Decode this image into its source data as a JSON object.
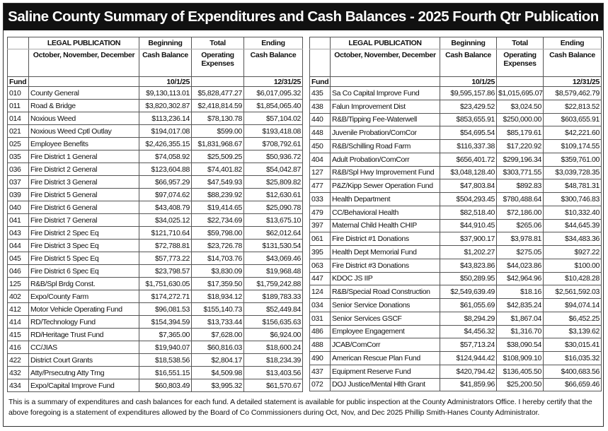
{
  "title": "Saline County Summary of Expenditures and Cash Balances - 2025 Fourth Qtr Publication",
  "tables": [
    {
      "header": [
        [
          "",
          "LEGAL PUBLICATION",
          "Beginning",
          "Total",
          "Ending"
        ],
        [
          "",
          "October, November, December",
          "Cash Balance",
          "Operating Expenses",
          "Cash Balance"
        ],
        [
          "Fund",
          "",
          "10/1/25",
          "",
          "12/31/25"
        ]
      ],
      "rows": [
        [
          "010",
          "County General",
          "$9,130,113.01",
          "$5,828,477.27",
          "$6,017,095.32"
        ],
        [
          "011",
          "Road & Bridge",
          "$3,820,302.87",
          "$2,418,814.59",
          "$1,854,065.40"
        ],
        [
          "014",
          "Noxious Weed",
          "$113,236.14",
          "$78,130.78",
          "$57,104.02"
        ],
        [
          "021",
          "Noxious Weed Cptl Outlay",
          "$194,017.08",
          "$599.00",
          "$193,418.08"
        ],
        [
          "025",
          "Employee Benefits",
          "$2,426,355.15",
          "$1,831,968.67",
          "$708,792.61"
        ],
        [
          "035",
          "Fire District 1 General",
          "$74,058.92",
          "$25,509.25",
          "$50,936.72"
        ],
        [
          "036",
          "Fire District 2 General",
          "$123,604.88",
          "$74,401.82",
          "$54,042.87"
        ],
        [
          "037",
          "Fire District 3 General",
          "$66,957.29",
          "$47,549.93",
          "$25,809.82"
        ],
        [
          "039",
          "Fire District 5 General",
          "$97,074.62",
          "$88,239.92",
          "$12,630.61"
        ],
        [
          "040",
          "Fire District 6 General",
          "$43,408.79",
          "$19,414.65",
          "$25,090.78"
        ],
        [
          "041",
          "Fire District 7 General",
          "$34,025.12",
          "$22,734.69",
          "$13,675.10"
        ],
        [
          "043",
          "Fire District 2 Spec Eq",
          "$121,710.64",
          "$59,798.00",
          "$62,012.64"
        ],
        [
          "044",
          "Fire District 3 Spec Eq",
          "$72,788.81",
          "$23,726.78",
          "$131,530.54"
        ],
        [
          "045",
          "Fire District 5 Spec Eq",
          "$57,773.22",
          "$14,703.76",
          "$43,069.46"
        ],
        [
          "046",
          "Fire District 6 Spec Eq",
          "$23,798.57",
          "$3,830.09",
          "$19,968.48"
        ],
        [
          "125",
          "R&B/Spl Brdg Const.",
          "$1,751,630.05",
          "$17,359.50",
          "$1,759,242.88"
        ],
        [
          "402",
          "Expo/County Farm",
          "$174,272.71",
          "$18,934.12",
          "$189,783.33"
        ],
        [
          "412",
          "Motor Vehicle Operating Fund",
          "$96,081.53",
          "$155,140.73",
          "$52,449.84"
        ],
        [
          "414",
          "RD/Technology Fund",
          "$154,394.59",
          "$13,733.44",
          "$156,635.63"
        ],
        [
          "415",
          "RD/Heritage Trust Fund",
          "$7,365.00",
          "$7,628.00",
          "$6,924.00"
        ],
        [
          "416",
          "CC/JIAS",
          "$19,940.07",
          "$60,816.03",
          "$18,600.24"
        ],
        [
          "422",
          "District Court Grants",
          "$18,538.56",
          "$2,804.17",
          "$18,234.39"
        ],
        [
          "432",
          "Atty/Prsecutng Atty Trng",
          "$16,551.15",
          "$4,509.98",
          "$13,403.56"
        ],
        [
          "434",
          "Expo/Capital Improve Fund",
          "$60,803.49",
          "$3,995.32",
          "$61,570.67"
        ]
      ]
    },
    {
      "header": [
        [
          "",
          "LEGAL PUBLICATION",
          "Beginning",
          "Total",
          "Ending"
        ],
        [
          "",
          "October, November, December",
          "Cash Balance",
          "Operating Expenses",
          "Cash Balance"
        ],
        [
          "Fund",
          "",
          "10/1/25",
          "",
          "12/31/25"
        ]
      ],
      "rows": [
        [
          "435",
          "Sa Co Capital Improve Fund",
          "$9,595,157.86",
          "$1,015,695.07",
          "$8,579,462.79"
        ],
        [
          "438",
          "Falun Improvement Dist",
          "$23,429.52",
          "$3,024.50",
          "$22,813.52"
        ],
        [
          "440",
          "R&B/Tipping Fee-Waterwell",
          "$853,655.91",
          "$250,000.00",
          "$603,655.91"
        ],
        [
          "448",
          "Juvenile Probation/ComCor",
          "$54,695.54",
          "$85,179.61",
          "$42,221.60"
        ],
        [
          "450",
          "R&B/Schilling Road Farm",
          "$116,337.38",
          "$17,220.92",
          "$109,174.55"
        ],
        [
          "404",
          "Adult Probation/ComCorr",
          "$656,401.72",
          "$299,196.34",
          "$359,761.00"
        ],
        [
          "127",
          "R&B/Spl Hwy Improvement Fund",
          "$3,048,128.40",
          "$303,771.55",
          "$3,039,728.35"
        ],
        [
          "477",
          "P&Z/Kipp Sewer Operation Fund",
          "$47,803.84",
          "$892.83",
          "$48,781.31"
        ],
        [
          "033",
          "Health Department",
          "$504,293.45",
          "$780,488.64",
          "$300,746.83"
        ],
        [
          "479",
          "CC/Behavioral Health",
          "$82,518.40",
          "$72,186.00",
          "$10,332.40"
        ],
        [
          "397",
          "Maternal Child Health CHIP",
          "$44,910.45",
          "$265.06",
          "$44,645.39"
        ],
        [
          "061",
          "Fire District #1 Donations",
          "$37,900.17",
          "$3,978.81",
          "$34,483.36"
        ],
        [
          "395",
          "Health Dept Memorial Fund",
          "$1,202.27",
          "$275.05",
          "$927.22"
        ],
        [
          "063",
          "Fire District #3 Donations",
          "$43,823.86",
          "$44,023.86",
          "$100.00"
        ],
        [
          "447",
          "KDOC JS IIP",
          "$50,289.95",
          "$42,964.96",
          "$10,428.28"
        ],
        [
          "124",
          "R&B/Special Road Construction",
          "$2,549,639.49",
          "$18.16",
          "$2,561,592.03"
        ],
        [
          "034",
          "Senior Service Donations",
          "$61,055.69",
          "$42,835.24",
          "$94,074.14"
        ],
        [
          "031",
          "Senior Services GSCF",
          "$8,294.29",
          "$1,867.04",
          "$6,452.25"
        ],
        [
          "486",
          "Employee Engagement",
          "$4,456.32",
          "$1,316.70",
          "$3,139.62"
        ],
        [
          "488",
          "JCAB/ComCorr",
          "$57,713.24",
          "$38,090.54",
          "$30,015.41"
        ],
        [
          "490",
          "American Rescue Plan Fund",
          "$124,944.42",
          "$108,909.10",
          "$16,035.32"
        ],
        [
          "437",
          "Equipment Reserve Fund",
          "$420,794.42",
          "$136,405.50",
          "$400,683.56"
        ],
        [
          "072",
          "DOJ Justice/Mental Hlth Grant",
          "$41,859.96",
          "$25,200.50",
          "$66,659.46"
        ]
      ]
    }
  ],
  "footer": "This is a summary of expenditures and cash balances for each fund.  A detailed statement is available for public inspection at the County Administrators Office. I hereby certify that the above foregoing is a statement of expenditures allowed by the Board of Co Commissioners during Oct, Nov, and Dec 2025 Phillip Smith-Hanes County Administrator."
}
